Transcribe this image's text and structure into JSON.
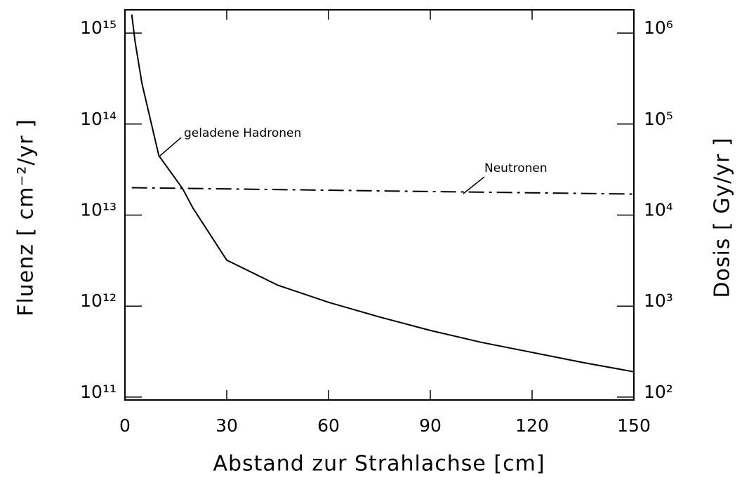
{
  "chart_data": {
    "type": "line",
    "x_label": "Abstand zur Strahlachse  [cm]",
    "y_label": "Fluenz  [ cm⁻²/yr ]",
    "y2_label": "Dosis  [ Gy/yr ]",
    "xlim": [
      0,
      150
    ],
    "xticks": [
      0,
      30,
      60,
      90,
      120,
      150
    ],
    "ylim": [
      93000000000,
      1800000000000000
    ],
    "yscale": "log",
    "yticks": [
      {
        "value": 100000000000,
        "label": "10¹¹"
      },
      {
        "value": 1000000000000,
        "label": "10¹²"
      },
      {
        "value": 10000000000000,
        "label": "10¹³"
      },
      {
        "value": 100000000000000,
        "label": "10¹⁴"
      },
      {
        "value": 1000000000000000,
        "label": "10¹⁵"
      }
    ],
    "y2lim": [
      93,
      1800000
    ],
    "y2scale": "log",
    "y2ticks": [
      {
        "value": 100,
        "label": "10²"
      },
      {
        "value": 1000,
        "label": "10³"
      },
      {
        "value": 10000,
        "label": "10⁴"
      },
      {
        "value": 100000,
        "label": "10⁵"
      },
      {
        "value": 1000000,
        "label": "10⁶"
      }
    ],
    "grid": false,
    "series": [
      {
        "name": "geladene Hadronen",
        "color": "#000000",
        "linestyle": "solid",
        "x": [
          2,
          3,
          5,
          10,
          17,
          20,
          30,
          45,
          60,
          75,
          90,
          105,
          120,
          135,
          150
        ],
        "values": [
          1600000000000000,
          800000000000000,
          280000000000000,
          45000000000000,
          19500000000000,
          12000000000000,
          3200000000000,
          1700000000000,
          1100000000000,
          760000000000,
          540000000000,
          400000000000,
          310000000000,
          240000000000,
          190000000000
        ]
      },
      {
        "name": "Neutronen",
        "color": "#000000",
        "linestyle": "dashdot",
        "x": [
          2,
          150
        ],
        "values": [
          20000000000000,
          17000000000000
        ]
      }
    ]
  }
}
